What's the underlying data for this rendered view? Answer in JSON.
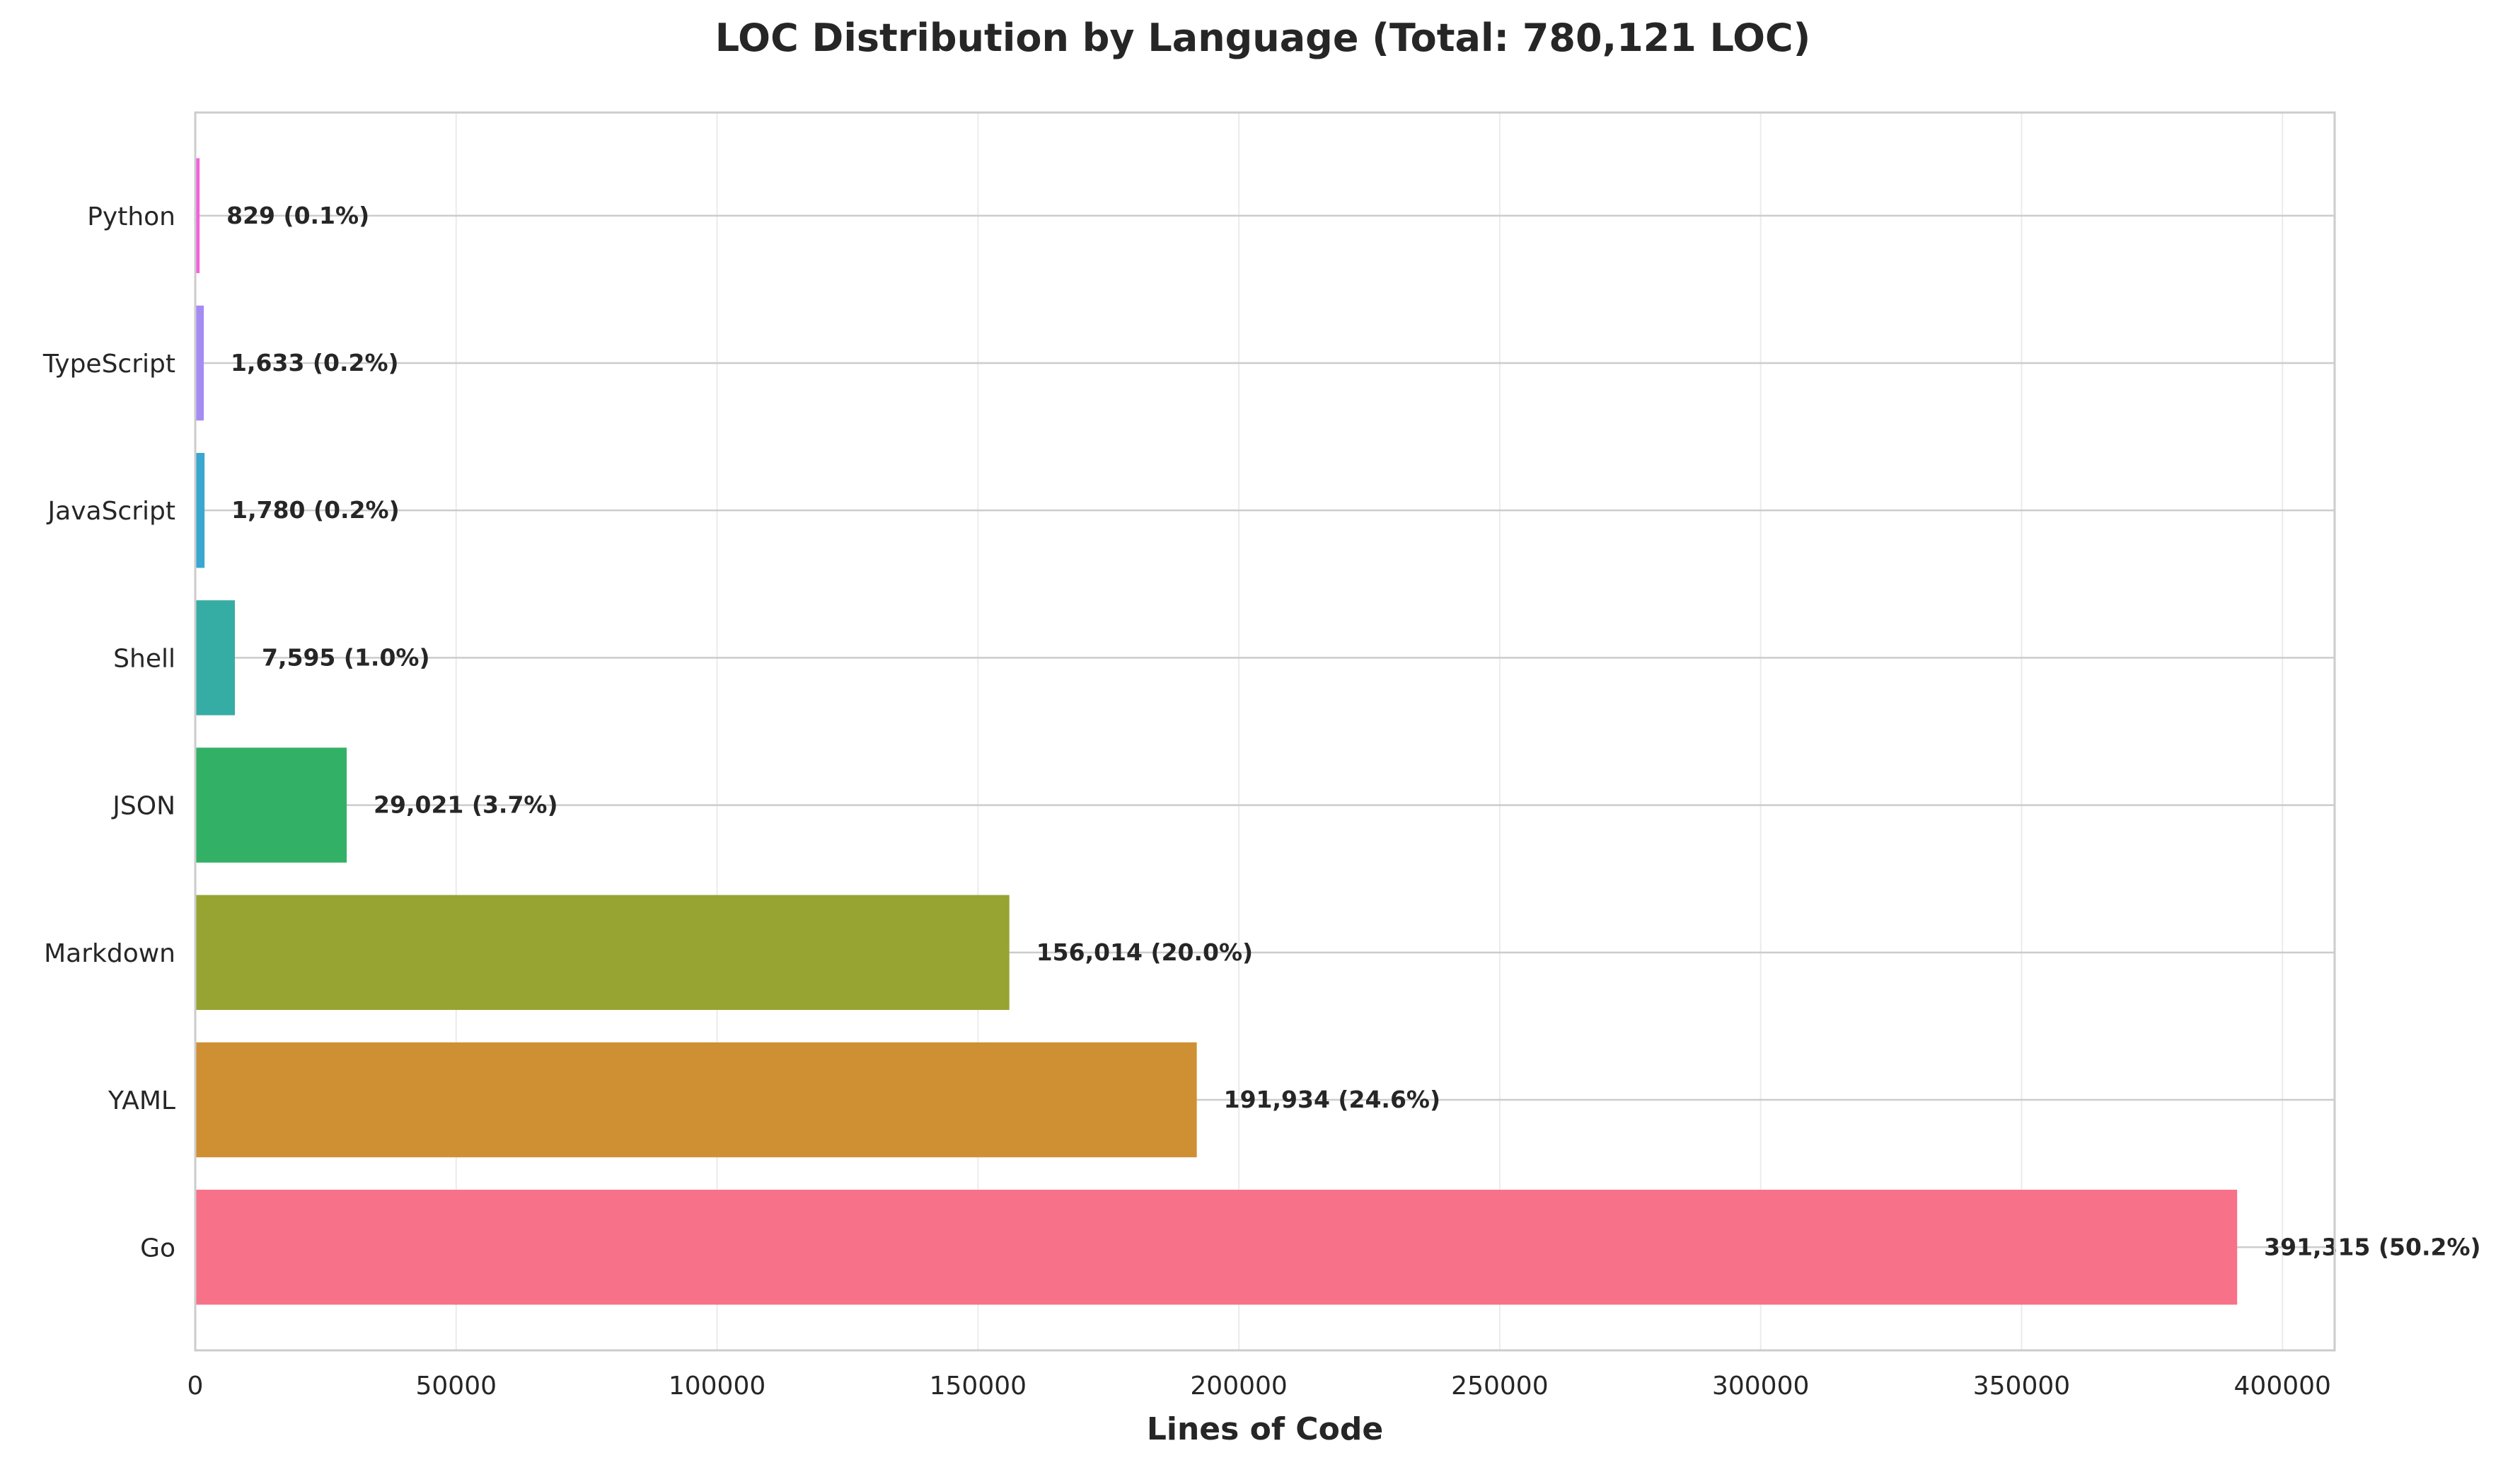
{
  "chart_data": {
    "type": "bar",
    "orientation": "horizontal",
    "title": "LOC Distribution by Language (Total: 780,121 LOC)",
    "xlabel": "Lines of Code",
    "ylabel": "",
    "xlim": [
      0,
      410000
    ],
    "x_ticks": [
      0,
      50000,
      100000,
      150000,
      200000,
      250000,
      300000,
      350000,
      400000
    ],
    "grid": true,
    "categories": [
      "Go",
      "YAML",
      "Markdown",
      "JSON",
      "Shell",
      "JavaScript",
      "TypeScript",
      "Python"
    ],
    "values": [
      391315,
      191934,
      156014,
      29021,
      7595,
      1780,
      1633,
      829
    ],
    "value_labels": [
      "391,315 (50.2%)",
      "191,934 (24.6%)",
      "156,014 (20.0%)",
      "29,021 (3.7%)",
      "7,595 (1.0%)",
      "1,780 (0.2%)",
      "1,633 (0.2%)",
      "829 (0.1%)"
    ],
    "colors": [
      "#f77189",
      "#ce9032",
      "#97a431",
      "#32b166",
      "#36ada4",
      "#39a7d0",
      "#a48cf4",
      "#f561dd"
    ]
  }
}
